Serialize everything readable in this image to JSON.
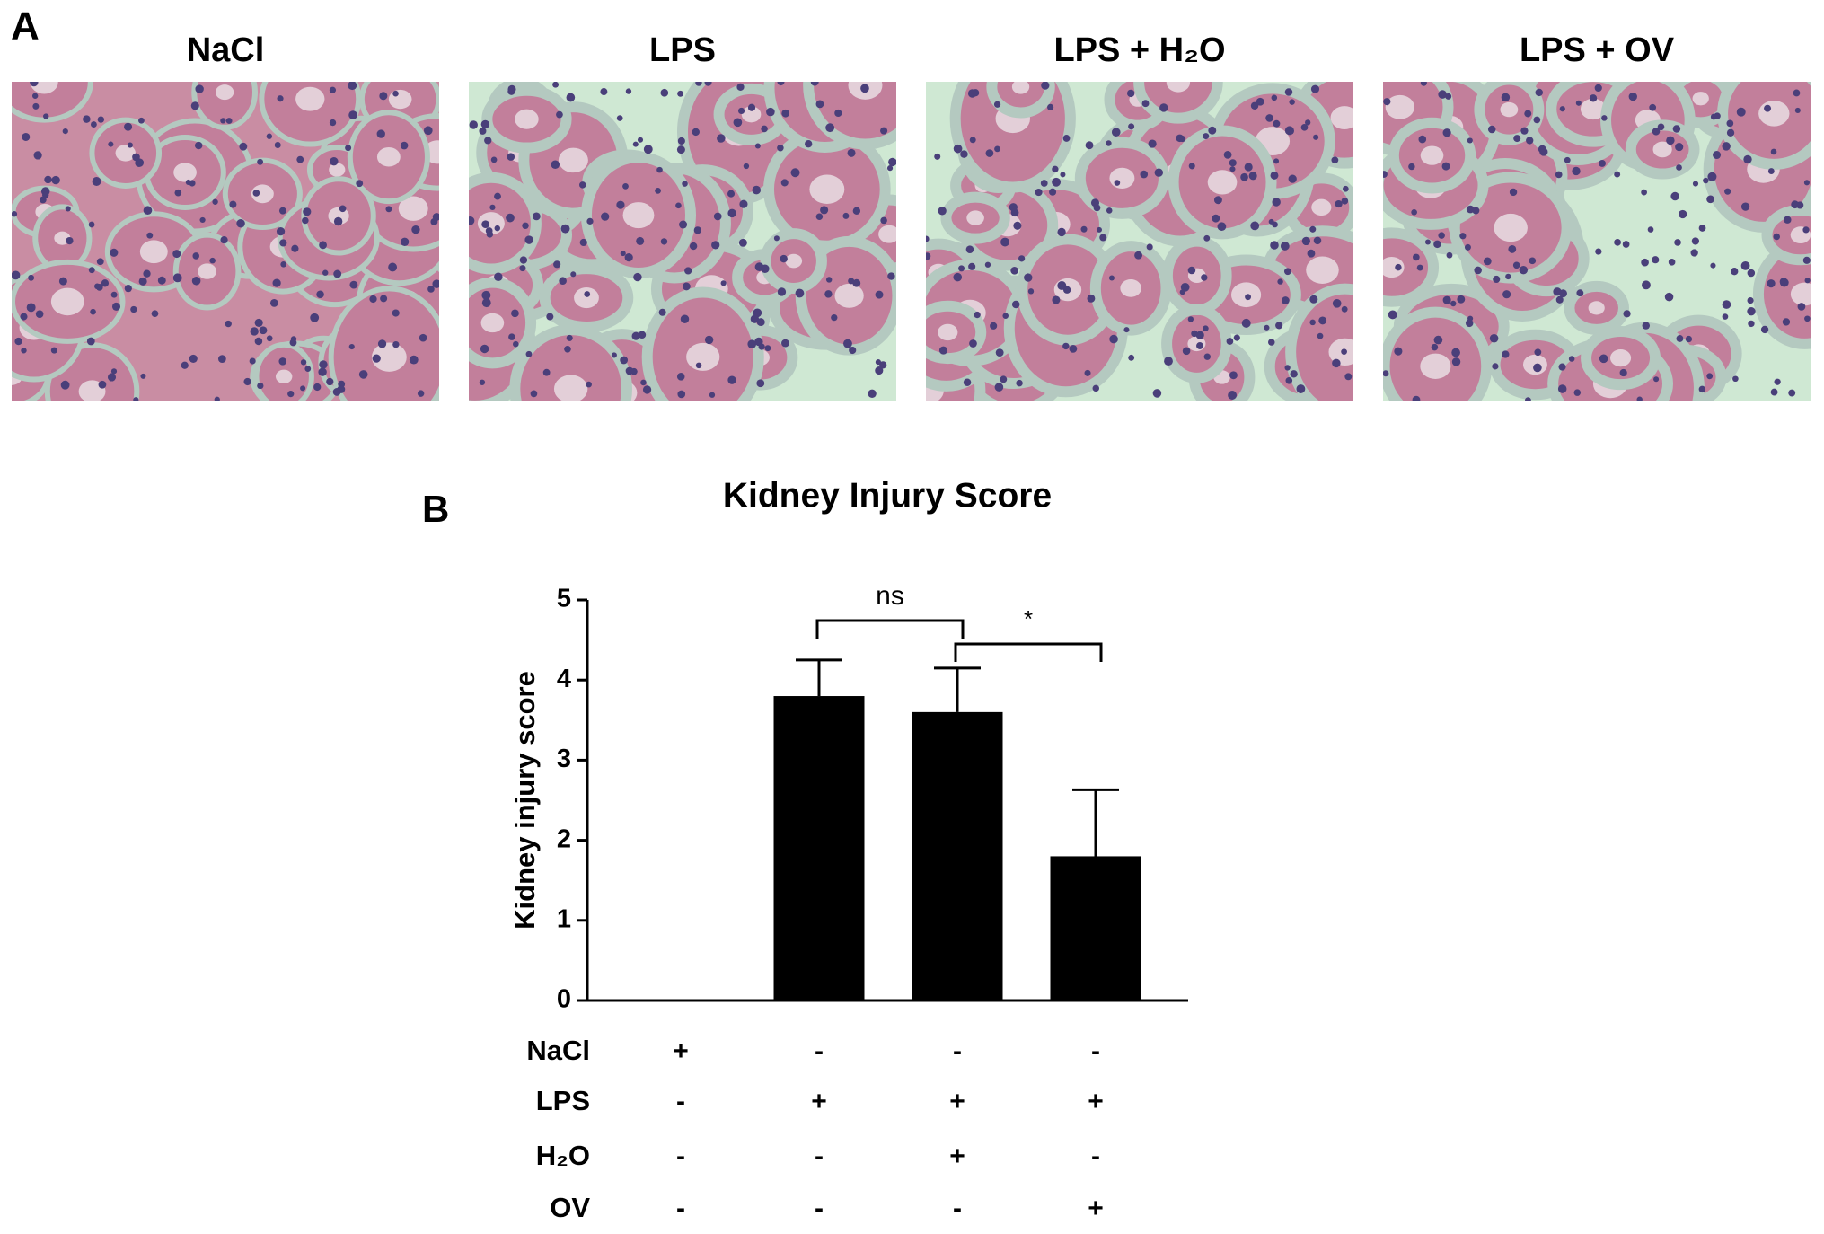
{
  "panel_a": {
    "label": "A",
    "panels": [
      "NaCl",
      "LPS",
      "LPS + H₂O",
      "LPS + OV"
    ]
  },
  "chart_data": {
    "type": "bar",
    "panel_label": "B",
    "title": "Kidney Injury Score",
    "ylabel": "Kidney injury score",
    "categories": [
      null,
      null,
      null,
      null
    ],
    "values": [
      0,
      3.8,
      3.6,
      1.8
    ],
    "errors": [
      null,
      0.45,
      0.55,
      0.83
    ],
    "color": "#000000",
    "ylim": [
      0,
      5
    ],
    "yticks": [
      0,
      1,
      2,
      3,
      4,
      5
    ],
    "annotations": [
      "ns",
      "*"
    ],
    "treatments": [
      {
        "name": "NaCl",
        "marks": [
          "+",
          "-",
          "-",
          "-"
        ]
      },
      {
        "name": "LPS",
        "marks": [
          "-",
          "+",
          "+",
          "+"
        ]
      },
      {
        "name": "H₂O",
        "marks": [
          "-",
          "-",
          "+",
          "-"
        ]
      },
      {
        "name": "OV",
        "marks": [
          "-",
          "-",
          "-",
          "+"
        ]
      }
    ]
  }
}
